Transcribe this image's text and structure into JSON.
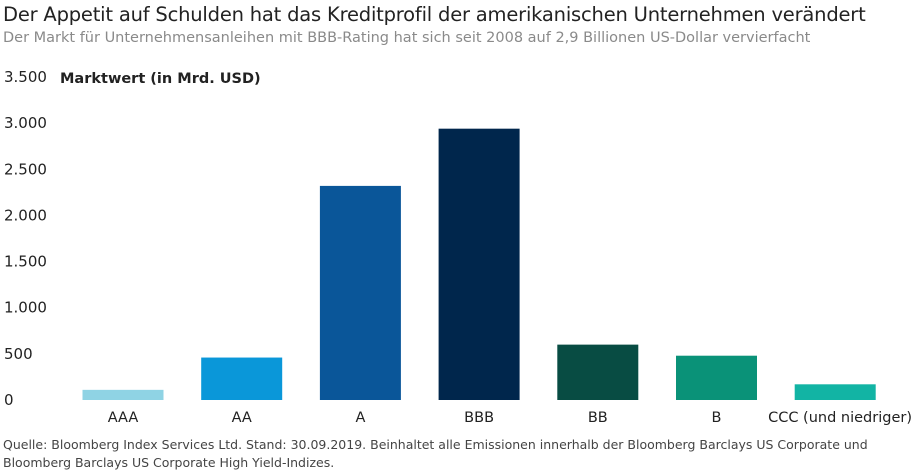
{
  "header": {
    "title": "Der Appetit auf Schulden hat das Kreditprofil der amerikanischen Unternehmen verändert",
    "subtitle": "Der Markt für Unternehmensanleihen mit BBB-Rating hat sich seit 2008 auf 2,9 Billionen US-Dollar vervierfacht"
  },
  "footer": {
    "source": "Quelle: Bloomberg Index Services Ltd. Stand: 30.09.2019. Beinhaltet alle Emissionen innerhalb der Bloomberg Barclays US Corporate und Bloomberg Barclays US Corporate High Yield-Indizes."
  },
  "chart_data": {
    "type": "bar",
    "title": "Der Appetit auf Schulden hat das Kreditprofil der amerikanischen Unternehmen verändert",
    "ylabel": "Marktwert (in Mrd. USD)",
    "xlabel": "",
    "ylim": [
      0,
      3500
    ],
    "yticks": [
      0,
      500,
      1000,
      1500,
      2000,
      2500,
      3000,
      3500
    ],
    "ytick_labels": [
      "0",
      "500",
      "1.000",
      "1.500",
      "2.000",
      "2.500",
      "3.000",
      "3.500"
    ],
    "categories": [
      "AAA",
      "AA",
      "A",
      "BBB",
      "BB",
      "B",
      "CCC (und niedriger)"
    ],
    "values": [
      110,
      460,
      2320,
      2940,
      600,
      480,
      170
    ],
    "colors": [
      "#8fd3e4",
      "#0a97d9",
      "#0a5699",
      "#00264c",
      "#084c43",
      "#0a9278",
      "#12b4a4"
    ],
    "grid": false,
    "legend": "none"
  }
}
